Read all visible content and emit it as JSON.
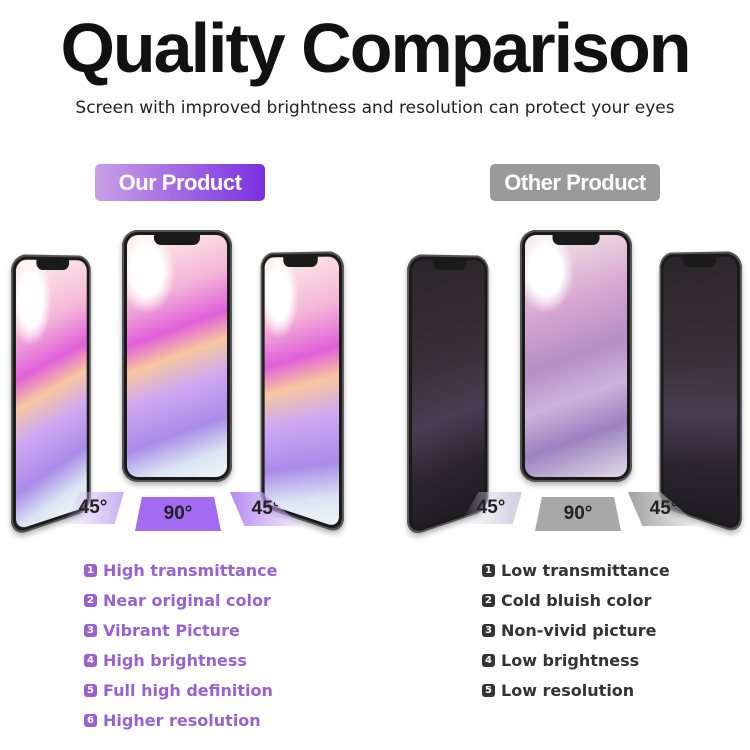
{
  "title": "Quality Comparison",
  "subtitle": "Screen with improved brightness and resolution can protect your eyes",
  "ours": {
    "badge": "Our Product",
    "color": "#9a62cf",
    "angles": [
      "45°",
      "90°",
      "45°"
    ],
    "features": [
      {
        "num": "1",
        "text": "High transmittance"
      },
      {
        "num": "2",
        "text": "Near original color"
      },
      {
        "num": "3",
        "text": "Vibrant Picture"
      },
      {
        "num": "4",
        "text": "High brightness"
      },
      {
        "num": "5",
        "text": "Full high definition"
      },
      {
        "num": "6",
        "text": "Higher resolution"
      }
    ]
  },
  "other": {
    "badge": "Other Product",
    "color": "#9a9a9a",
    "angles": [
      "45°",
      "90°",
      "45°"
    ],
    "features": [
      {
        "num": "1",
        "text": "Low transmittance"
      },
      {
        "num": "2",
        "text": "Cold bluish color"
      },
      {
        "num": "3",
        "text": "Non-vivid picture"
      },
      {
        "num": "4",
        "text": "Low brightness"
      },
      {
        "num": "5",
        "text": "Low resolution"
      }
    ]
  }
}
